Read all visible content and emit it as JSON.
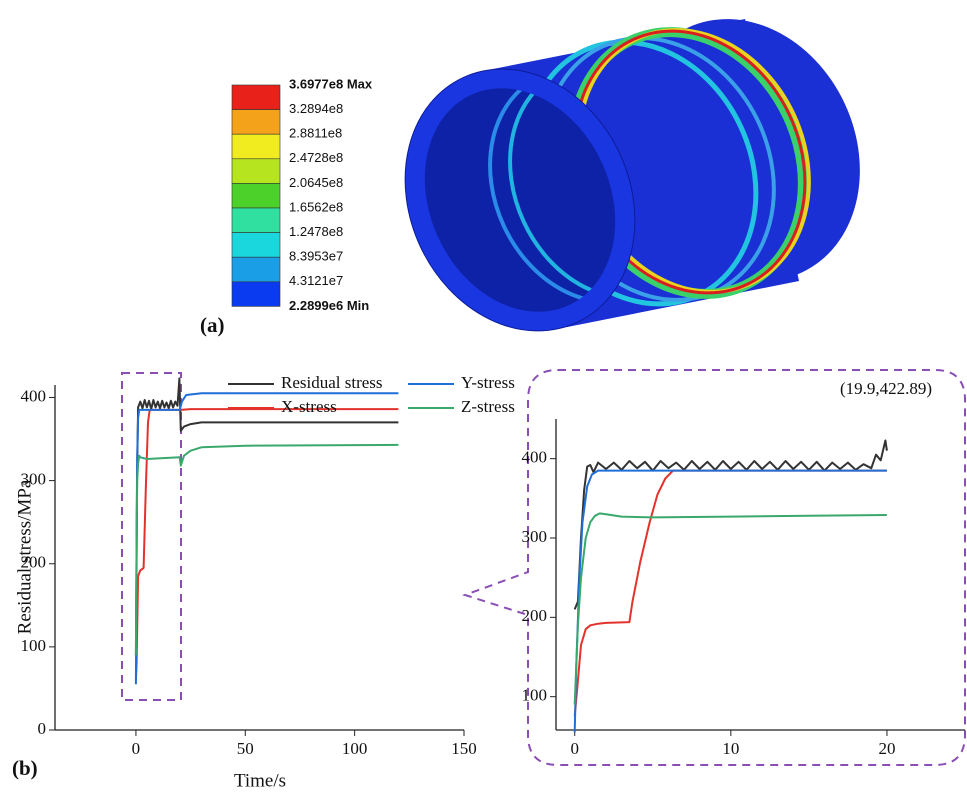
{
  "panel_a": {
    "label": "(a)",
    "legend_labels": [
      "3.6977e8 Max",
      "3.2894e8",
      "2.8811e8",
      "2.4728e8",
      "2.0645e8",
      "1.6562e8",
      "1.2478e8",
      "8.3953e7",
      "4.3121e7",
      "2.2899e6 Min"
    ],
    "legend_colors": [
      "#e8211a",
      "#f4a21a",
      "#f1ec1f",
      "#b6e41f",
      "#4cd12a",
      "#2fe0a0",
      "#1ad7dd",
      "#1a9ee6",
      "#0a3bf0"
    ]
  },
  "chart_data": [
    {
      "type": "line",
      "label": "(b)",
      "x_label": "Time/s",
      "y_label": "Residual stress/MPa",
      "xlim": [
        -37,
        150
      ],
      "ylim": [
        0,
        415
      ],
      "xticks": [
        0,
        50,
        100,
        150
      ],
      "yticks": [
        0,
        100,
        200,
        300,
        400
      ],
      "series": [
        {
          "name": "Residual stress",
          "color": "#333333",
          "x": [
            0,
            0.5,
            1,
            2,
            3,
            4,
            5,
            6,
            7,
            8,
            9,
            10,
            11,
            12,
            13,
            14,
            15,
            16,
            17,
            18,
            19,
            19.9,
            20.5,
            22,
            25,
            30,
            40,
            60,
            80,
            100,
            120
          ],
          "values": [
            90,
            300,
            388,
            395,
            387,
            397,
            388,
            396,
            386,
            397,
            388,
            395,
            387,
            396,
            388,
            394,
            387,
            396,
            388,
            395,
            390,
            422.89,
            360,
            365,
            368,
            370,
            370,
            370,
            370,
            370,
            370
          ]
        },
        {
          "name": "X-stress",
          "color": "#e3322b",
          "x": [
            0,
            0.3,
            1,
            2,
            3.5,
            4.5,
            5.5,
            6.3,
            10,
            20,
            20.5,
            25,
            40,
            120
          ],
          "values": [
            60,
            80,
            185,
            192,
            195,
            290,
            370,
            385,
            385,
            385,
            385,
            386,
            386,
            386
          ]
        },
        {
          "name": "Y-stress",
          "color": "#1f6fd6",
          "x": [
            0,
            0.3,
            0.6,
            1,
            1.5,
            2,
            10,
            20,
            21,
            23,
            30,
            120
          ],
          "values": [
            55,
            200,
            330,
            375,
            385,
            385,
            385,
            385,
            395,
            403,
            405,
            405
          ]
        },
        {
          "name": "Z-stress",
          "color": "#3aa86b",
          "x": [
            0,
            0.3,
            0.6,
            1,
            1.5,
            2,
            5,
            20,
            20.5,
            22,
            25,
            30,
            50,
            120
          ],
          "values": [
            90,
            230,
            300,
            320,
            330,
            328,
            326,
            328,
            318,
            330,
            336,
            340,
            342,
            343
          ]
        }
      ]
    },
    {
      "type": "line",
      "annotation": "(19.9,422.89)",
      "xlim": [
        -1.2,
        25
      ],
      "ylim": [
        58,
        450
      ],
      "xticks": [
        0,
        10,
        20
      ],
      "yticks": [
        100,
        200,
        300,
        400
      ],
      "series": [
        {
          "color": "#333333",
          "x": [
            0,
            0.2,
            0.4,
            0.6,
            0.8,
            1.0,
            1.2,
            1.5,
            2,
            2.5,
            3,
            3.5,
            4,
            4.5,
            5,
            5.5,
            6,
            6.5,
            7,
            7.5,
            8,
            8.5,
            9,
            9.5,
            10,
            10.5,
            11,
            11.5,
            12,
            12.5,
            13,
            13.5,
            14,
            14.5,
            15,
            15.5,
            16,
            16.5,
            17,
            17.5,
            18,
            18.5,
            19,
            19.3,
            19.6,
            19.9,
            20
          ],
          "values": [
            210,
            220,
            300,
            360,
            390,
            392,
            383,
            395,
            387,
            395,
            386,
            397,
            388,
            396,
            385,
            397,
            388,
            395,
            386,
            397,
            387,
            396,
            386,
            397,
            387,
            396,
            386,
            397,
            387,
            396,
            386,
            397,
            387,
            396,
            386,
            396,
            385,
            395,
            387,
            395,
            386,
            393,
            388,
            405,
            398,
            422.89,
            410
          ]
        },
        {
          "color": "#e3322b",
          "x": [
            0,
            0.2,
            0.4,
            0.7,
            1,
            1.5,
            2,
            3.5,
            3.7,
            4.2,
            4.8,
            5.3,
            5.8,
            6.3,
            7,
            20
          ],
          "values": [
            75,
            120,
            165,
            185,
            190,
            192,
            193,
            194,
            220,
            270,
            320,
            355,
            375,
            385,
            385,
            385
          ]
        },
        {
          "color": "#1f6fd6",
          "x": [
            0,
            0.1,
            0.3,
            0.5,
            0.8,
            1.1,
            1.5,
            2,
            5,
            10,
            20
          ],
          "values": [
            55,
            140,
            250,
            320,
            365,
            380,
            385,
            385,
            385,
            385,
            385
          ]
        },
        {
          "color": "#3aa86b",
          "x": [
            0,
            0.2,
            0.4,
            0.7,
            1,
            1.3,
            1.6,
            2,
            3,
            5,
            10,
            15,
            20
          ],
          "values": [
            90,
            190,
            250,
            300,
            320,
            328,
            331,
            330,
            327,
            326,
            327,
            328,
            329
          ]
        }
      ]
    }
  ]
}
